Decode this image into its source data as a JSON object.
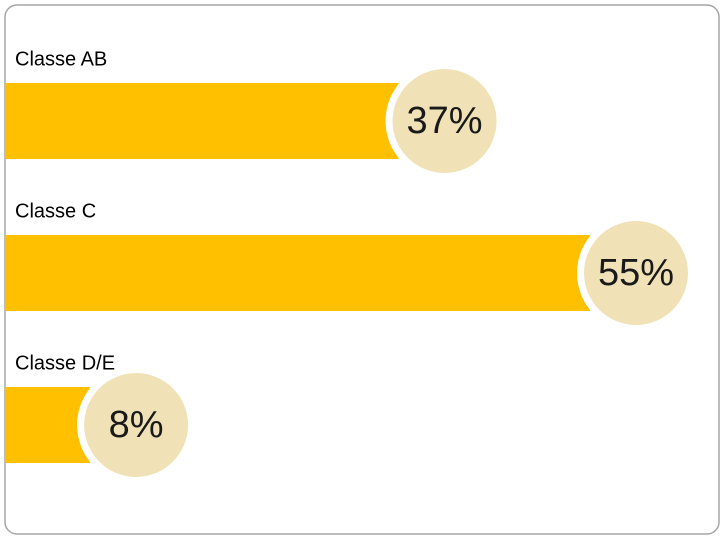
{
  "chart_data": {
    "type": "bar",
    "orientation": "horizontal",
    "categories": [
      "Classe AB",
      "Classe C",
      "Classe D/E"
    ],
    "values": [
      37,
      55,
      8
    ],
    "value_labels": [
      "37%",
      "55%",
      "8%"
    ],
    "color": "#ffc000",
    "label_color": "#f0e2b6"
  }
}
